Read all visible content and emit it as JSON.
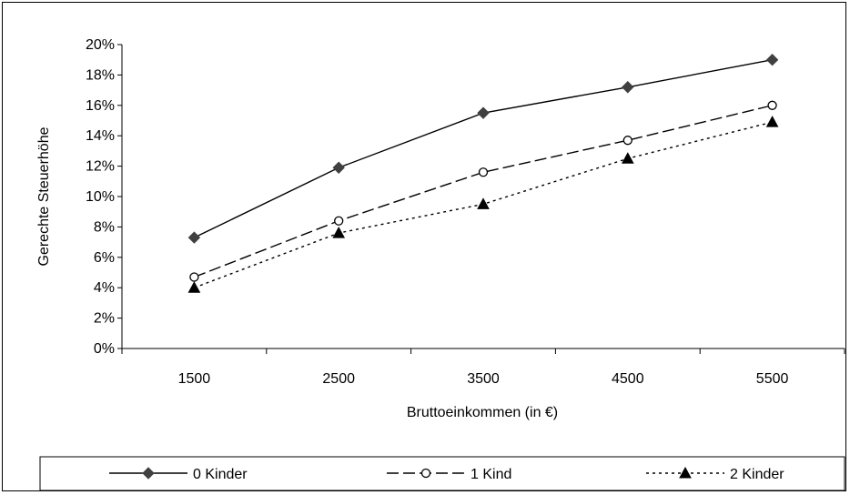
{
  "chart_data": {
    "type": "line",
    "title": "",
    "xlabel": "Bruttoeinkommen (in €)",
    "ylabel": "Gerechte Steuerhöhe",
    "categories": [
      "1500",
      "2500",
      "3500",
      "4500",
      "5500"
    ],
    "ylim": [
      0,
      20
    ],
    "y_ticks": [
      "0%",
      "2%",
      "4%",
      "6%",
      "8%",
      "10%",
      "12%",
      "14%",
      "16%",
      "18%",
      "20%"
    ],
    "grid": false,
    "legend_position": "bottom",
    "series": [
      {
        "name": "0 Kinder",
        "values": [
          7.3,
          11.9,
          15.5,
          17.2,
          19.0
        ],
        "marker": "diamond",
        "line": "solid",
        "color": "#000000",
        "marker_color": "#404040"
      },
      {
        "name": "1 Kind",
        "values": [
          4.7,
          8.4,
          11.6,
          13.7,
          16.0
        ],
        "marker": "circle-open",
        "line": "dashed",
        "color": "#000000",
        "marker_color": "#000000"
      },
      {
        "name": "2 Kinder",
        "values": [
          4.0,
          7.6,
          9.5,
          12.5,
          14.9
        ],
        "marker": "triangle",
        "line": "dotted",
        "color": "#000000",
        "marker_color": "#000000"
      }
    ]
  }
}
